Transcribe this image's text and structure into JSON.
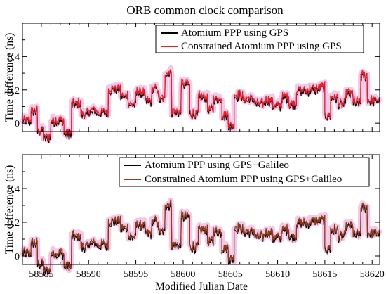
{
  "chart_data": {
    "title": "ORB common clock comparison",
    "xlabel": "Modified Julian Date",
    "x_ticks": [
      58585,
      58590,
      58595,
      58600,
      58605,
      58610,
      58615,
      58620
    ],
    "xlim": [
      58583.0,
      58620.8
    ],
    "panels": [
      {
        "type": "line",
        "ylabel": "Time difference (ns)",
        "ylim": [
          -0.05,
          0.6
        ],
        "y_ticks": [
          0,
          0.2,
          0.4
        ],
        "y_tick_labels": [
          "0",
          "0,2",
          "0,4"
        ],
        "legend_position": "top-right",
        "series": [
          {
            "name": "Atomium PPP using GPS",
            "color": "#000000"
          },
          {
            "name": "Constrained Atomium PPP using GPS",
            "color": "#e3202a"
          }
        ]
      },
      {
        "type": "line",
        "ylabel": "Time difference (ns)",
        "ylim": [
          -0.05,
          0.6
        ],
        "y_ticks": [
          0,
          0.2,
          0.4
        ],
        "y_tick_labels": [
          "0",
          "0,2",
          "0,4"
        ],
        "legend_position": "top-right",
        "series": [
          {
            "name": "Atomium PPP using GPS+Galileo",
            "color": "#000000"
          },
          {
            "name": "Constrained Atomium PPP using GPS+Galileo",
            "color": "#8b3a1a"
          }
        ]
      }
    ],
    "segments": [
      {
        "x": [
          58583.0,
          58583.9
        ],
        "y": 0.02
      },
      {
        "x": [
          58583.9,
          58584.6
        ],
        "y": 0.08
      },
      {
        "x": [
          58584.6,
          58585.2
        ],
        "y": -0.04
      },
      {
        "x": [
          58585.2,
          58586.0
        ],
        "y": -0.08
      },
      {
        "x": [
          58586.0,
          58587.4
        ],
        "y": 0.02
      },
      {
        "x": [
          58587.4,
          58588.2
        ],
        "y": -0.06
      },
      {
        "x": [
          58588.2,
          58589.2
        ],
        "y": 0.12
      },
      {
        "x": [
          58589.2,
          58590.0
        ],
        "y": 0.06
      },
      {
        "x": [
          58590.0,
          58590.8
        ],
        "y": 0.08
      },
      {
        "x": [
          58590.8,
          58592.1
        ],
        "y": 0.07
      },
      {
        "x": [
          58592.1,
          58593.4
        ],
        "y": 0.21
      },
      {
        "x": [
          58593.4,
          58594.2
        ],
        "y": 0.17
      },
      {
        "x": [
          58594.2,
          58595.0
        ],
        "y": 0.12
      },
      {
        "x": [
          58595.0,
          58596.0
        ],
        "y": 0.19
      },
      {
        "x": [
          58596.0,
          58596.7
        ],
        "y": 0.14
      },
      {
        "x": [
          58596.7,
          58597.4
        ],
        "y": 0.21
      },
      {
        "x": [
          58597.4,
          58598.1
        ],
        "y": 0.15
      },
      {
        "x": [
          58598.1,
          58598.8
        ],
        "y": 0.31
      },
      {
        "x": [
          58598.8,
          58599.8
        ],
        "y": 0.07
      },
      {
        "x": [
          58599.8,
          58600.7
        ],
        "y": 0.24
      },
      {
        "x": [
          58600.7,
          58601.6
        ],
        "y": 0.06
      },
      {
        "x": [
          58601.6,
          58602.6
        ],
        "y": 0.16
      },
      {
        "x": [
          58602.6,
          58603.2
        ],
        "y": 0.09
      },
      {
        "x": [
          58603.2,
          58604.1
        ],
        "y": 0.15
      },
      {
        "x": [
          58604.1,
          58604.8
        ],
        "y": 0.05
      },
      {
        "x": [
          58604.8,
          58605.4
        ],
        "y": -0.01
      },
      {
        "x": [
          58605.4,
          58606.3
        ],
        "y": 0.17
      },
      {
        "x": [
          58606.3,
          58607.6
        ],
        "y": 0.15
      },
      {
        "x": [
          58607.6,
          58608.6
        ],
        "y": 0.12
      },
      {
        "x": [
          58608.6,
          58609.5
        ],
        "y": 0.14
      },
      {
        "x": [
          58609.5,
          58610.4
        ],
        "y": 0.11
      },
      {
        "x": [
          58610.4,
          58611.2
        ],
        "y": 0.16
      },
      {
        "x": [
          58611.2,
          58612.0
        ],
        "y": 0.12
      },
      {
        "x": [
          58612.0,
          58613.4
        ],
        "y": 0.2
      },
      {
        "x": [
          58613.4,
          58614.4
        ],
        "y": 0.21
      },
      {
        "x": [
          58614.4,
          58615.0
        ],
        "y": 0.22
      },
      {
        "x": [
          58615.0,
          58615.6
        ],
        "y": 0.05
      },
      {
        "x": [
          58615.6,
          58616.4
        ],
        "y": 0.16
      },
      {
        "x": [
          58616.4,
          58617.2
        ],
        "y": 0.12
      },
      {
        "x": [
          58617.2,
          58618.0
        ],
        "y": 0.18
      },
      {
        "x": [
          58618.0,
          58618.8
        ],
        "y": 0.13
      },
      {
        "x": [
          58618.8,
          58619.5
        ],
        "y": 0.29
      },
      {
        "x": [
          58619.5,
          58620.8
        ],
        "y": 0.14
      }
    ]
  }
}
